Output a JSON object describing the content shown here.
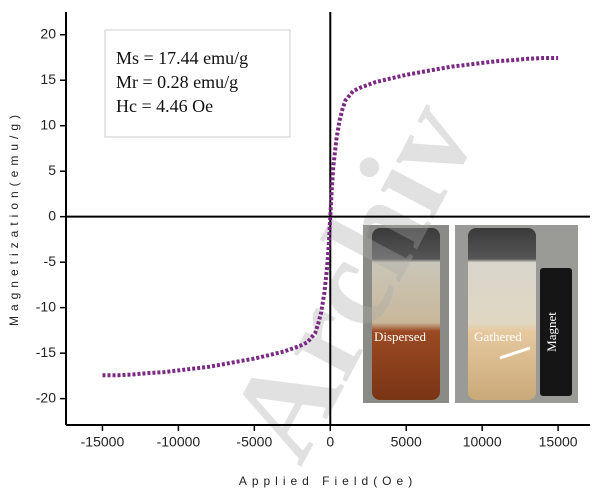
{
  "chart_data": {
    "type": "line",
    "xlabel": "Applied Field(Oe)",
    "ylabel": "Magnetization(emu/g)",
    "annotations": [
      "Ms = 17.44 emu/g",
      "Mr = 0.28 emu/g",
      "Hc = 4.46 Oe"
    ],
    "inset_labels": [
      "Dispersed",
      "Gathered",
      "Magnet"
    ],
    "watermark": "Archiv",
    "xlim": [
      -17400,
      17100
    ],
    "ylim": [
      -22.9,
      22.5
    ],
    "xticks": [
      -15000,
      -10000,
      -5000,
      0,
      5000,
      10000,
      15000
    ],
    "yticks": [
      -20,
      -15,
      -10,
      -5,
      0,
      5,
      10,
      15,
      20
    ],
    "series": [
      {
        "color": "#7b2a84",
        "x": [
          -15000,
          -14000,
          -13000,
          -12000,
          -11000,
          -10000,
          -9000,
          -8000,
          -7000,
          -6000,
          -5000,
          -4000,
          -3000,
          -2000,
          -1500,
          -1000,
          -800,
          -600,
          -400,
          -200,
          -100,
          0,
          100,
          200,
          400,
          600,
          800,
          1000,
          1500,
          2000,
          3000,
          4000,
          5000,
          6000,
          7000,
          8000,
          9000,
          10000,
          11000,
          12000,
          13000,
          14000,
          15000
        ],
        "values": [
          -17.44,
          -17.44,
          -17.35,
          -17.2,
          -17.1,
          -16.9,
          -16.7,
          -16.5,
          -16.2,
          -15.9,
          -15.6,
          -15.2,
          -14.8,
          -14.2,
          -13.8,
          -12.8,
          -11.8,
          -10.5,
          -8.5,
          -5.5,
          -3,
          0,
          3,
          5.5,
          8.5,
          10.5,
          11.8,
          12.8,
          13.8,
          14.2,
          14.8,
          15.2,
          15.6,
          15.9,
          16.2,
          16.5,
          16.7,
          16.9,
          17.1,
          17.2,
          17.35,
          17.44,
          17.44
        ]
      }
    ]
  }
}
